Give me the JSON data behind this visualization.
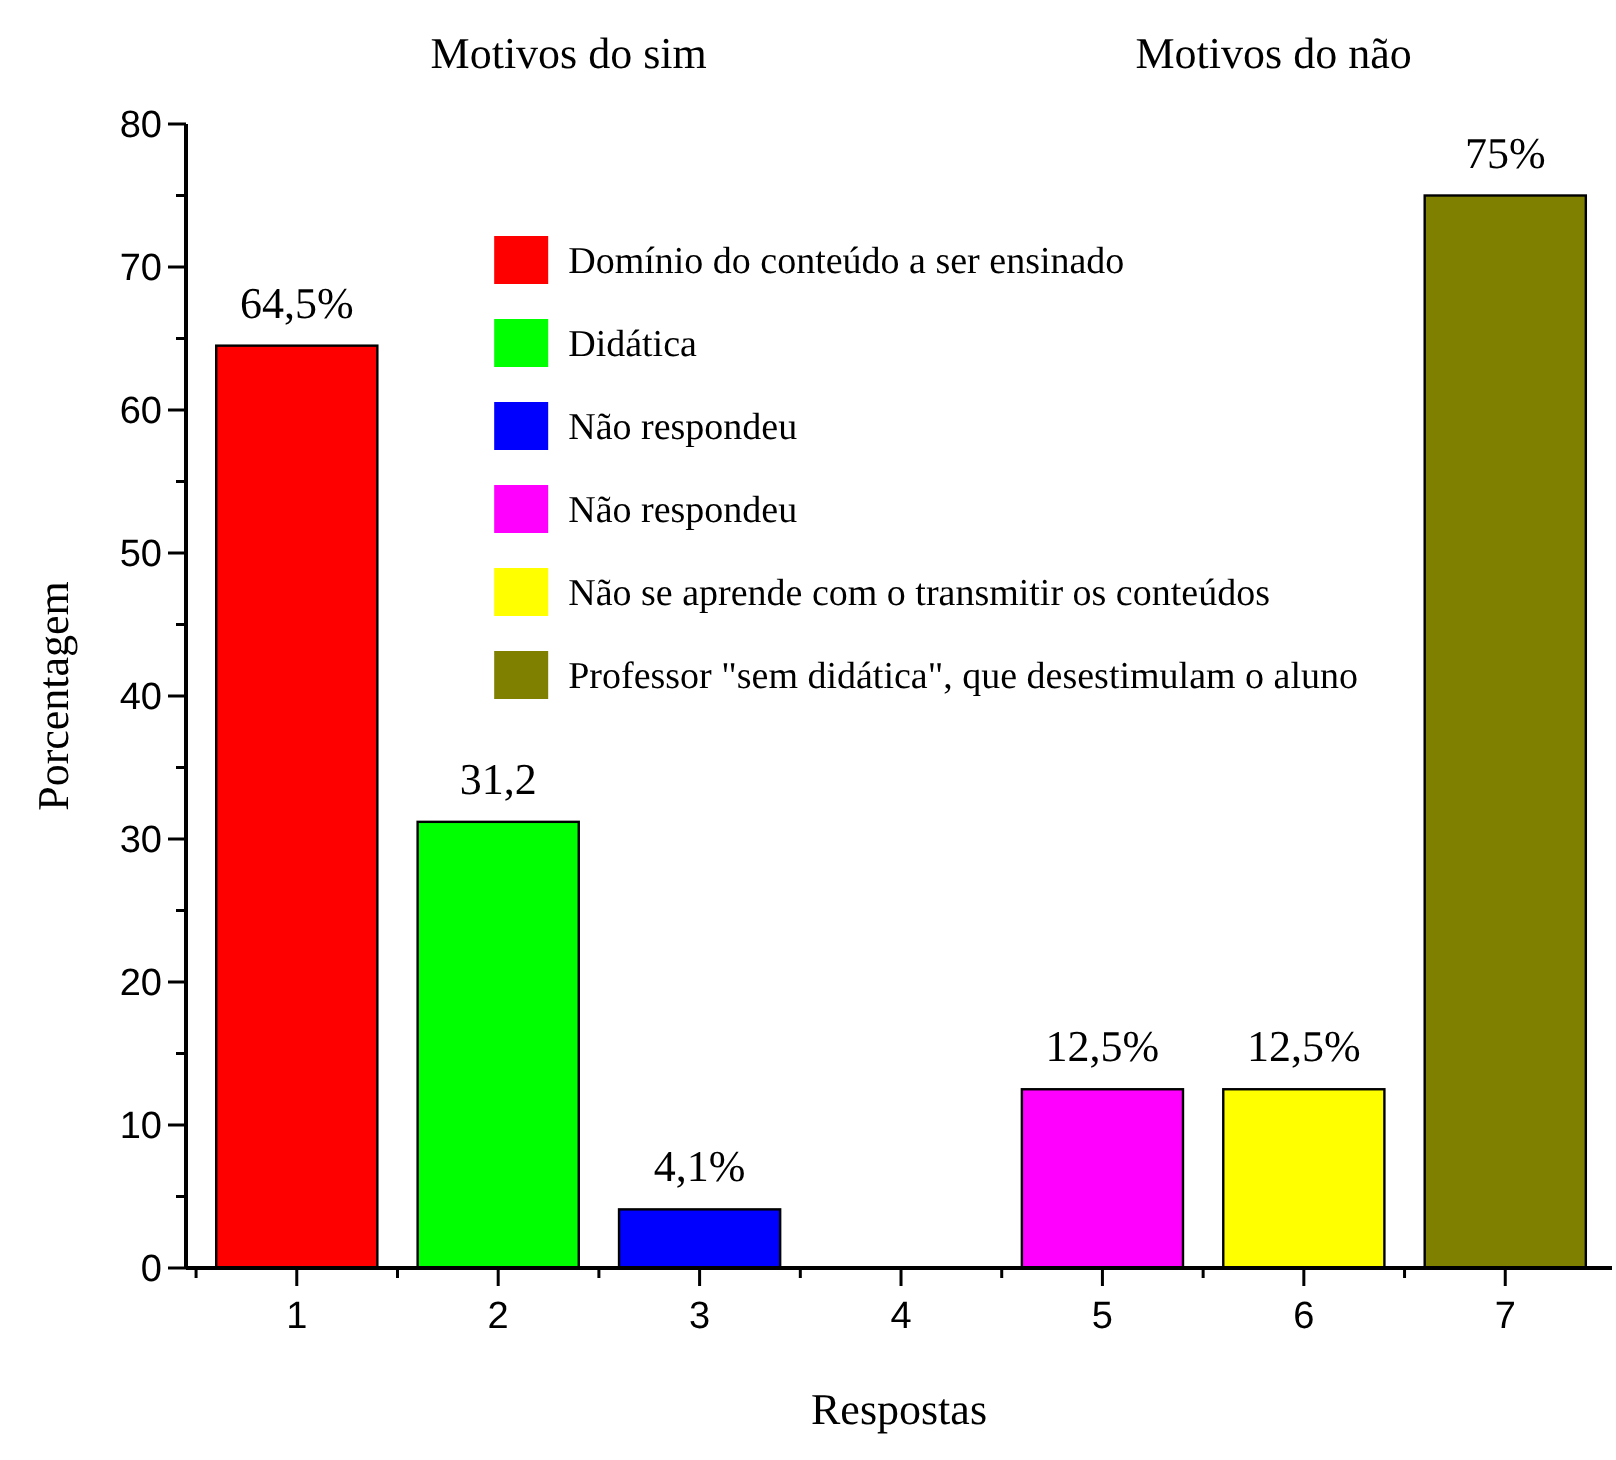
{
  "chart_data": {
    "type": "bar",
    "stacked": true,
    "xlabel": "Respostas",
    "ylabel": "Porcentagem",
    "annotations": [
      "Motivos do sim",
      "Motivos do não"
    ],
    "categories": [
      "1",
      "2",
      "3",
      "4",
      "5",
      "6",
      "7"
    ],
    "ylim": [
      0,
      80
    ],
    "yticks": [
      0,
      {
        "value": 5,
        "label": null
      },
      10,
      {
        "value": 15,
        "label": null
      },
      20,
      {
        "value": 25,
        "label": null
      },
      30,
      {
        "value": 35,
        "label": null
      },
      40,
      {
        "value": 45,
        "label": null
      },
      50,
      {
        "value": 55,
        "label": null
      },
      60,
      {
        "value": 65,
        "label": null
      },
      70,
      {
        "value": 75,
        "label": null
      },
      80
    ],
    "grid": false,
    "legend": "top",
    "series": [
      {
        "name": "Domínio do conteúdo a ser ensinado",
        "color": "#ff0000",
        "values": [
          64.5,
          null,
          null,
          null,
          null,
          null,
          null
        ],
        "value_labels": [
          "64,5%",
          null,
          null,
          null,
          null,
          null,
          null
        ]
      },
      {
        "name": "Didática",
        "color": "#00ff00",
        "values": [
          null,
          31.2,
          null,
          null,
          null,
          null,
          null
        ],
        "value_labels": [
          null,
          "31,2",
          null,
          null,
          null,
          null,
          null
        ]
      },
      {
        "name": "Não respondeu",
        "color": "#0000ff",
        "values": [
          null,
          null,
          4.1,
          null,
          null,
          null,
          null
        ],
        "value_labels": [
          null,
          null,
          "4,1%",
          null,
          null,
          null,
          null
        ]
      },
      {
        "name": "Não respondeu",
        "color": "#ff00ff",
        "values": [
          null,
          null,
          null,
          null,
          12.5,
          null,
          null
        ],
        "value_labels": [
          null,
          null,
          null,
          null,
          "12,5%",
          null,
          null
        ]
      },
      {
        "name": "Não se aprende com o transmitir os conteúdos",
        "color": "#ffff00",
        "values": [
          null,
          null,
          null,
          null,
          null,
          12.5,
          null
        ],
        "value_labels": [
          null,
          null,
          null,
          null,
          null,
          "12,5%",
          null
        ]
      },
      {
        "name": "Professor \"sem didática\", que desestimulam o aluno",
        "color": "#808000",
        "values": [
          null,
          null,
          null,
          null,
          null,
          null,
          75
        ],
        "value_labels": [
          null,
          null,
          null,
          null,
          null,
          null,
          "75%"
        ]
      }
    ]
  }
}
